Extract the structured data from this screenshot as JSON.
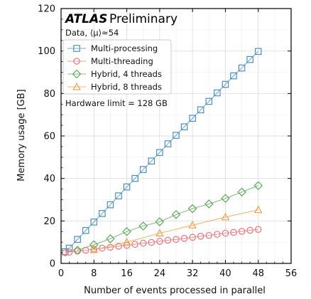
{
  "chart_data": {
    "type": "line",
    "experiment": "ATLAS",
    "status": "Preliminary",
    "subtitle": "Data, ⟨μ⟩≈54",
    "annotation": "Hardware limit = 128 GB",
    "xlabel": "Number of events processed in parallel",
    "ylabel": "Memory usage [GB]",
    "xlim": [
      0,
      56
    ],
    "ylim": [
      0,
      120
    ],
    "xticks": [
      0,
      8,
      16,
      24,
      32,
      40,
      48,
      56
    ],
    "yticks": [
      0,
      20,
      40,
      60,
      80,
      100,
      120
    ],
    "grid": true,
    "legend_position": "top-left",
    "series": [
      {
        "name": "Multi-processing",
        "color": "#4c8fbf",
        "marker": "square",
        "x": [
          1,
          2,
          4,
          6,
          8,
          10,
          12,
          14,
          16,
          18,
          20,
          22,
          24,
          26,
          28,
          30,
          32,
          34,
          36,
          38,
          40,
          42,
          44,
          46,
          48
        ],
        "y": [
          5.5,
          7.2,
          11.3,
          15.5,
          19.5,
          23.5,
          27.6,
          31.8,
          36.0,
          40.0,
          44.2,
          48.2,
          52.2,
          56.3,
          60.3,
          64.3,
          68.3,
          72.3,
          76.3,
          80.3,
          84.3,
          88.3,
          92.0,
          96.0,
          99.8
        ]
      },
      {
        "name": "Multi-threading",
        "color": "#e8777c",
        "marker": "circle",
        "x": [
          1,
          2,
          4,
          6,
          8,
          10,
          12,
          14,
          16,
          18,
          20,
          22,
          24,
          26,
          28,
          30,
          32,
          34,
          36,
          38,
          40,
          42,
          44,
          46,
          48
        ],
        "y": [
          5.0,
          5.3,
          5.8,
          6.2,
          6.7,
          7.2,
          7.6,
          8.1,
          8.5,
          9.0,
          9.5,
          9.9,
          10.4,
          10.9,
          11.3,
          11.8,
          12.3,
          12.8,
          13.2,
          13.7,
          14.2,
          14.6,
          15.1,
          15.6,
          16.0
        ]
      },
      {
        "name": "Hybrid, 4 threads",
        "color": "#5ba85b",
        "marker": "diamond",
        "x": [
          4,
          8,
          12,
          16,
          20,
          24,
          28,
          32,
          36,
          40,
          44,
          48
        ],
        "y": [
          6.2,
          8.8,
          11.6,
          15.0,
          17.6,
          19.6,
          23.0,
          25.8,
          28.0,
          30.6,
          33.6,
          36.6
        ]
      },
      {
        "name": "Hybrid, 8 threads",
        "color": "#f0a04b",
        "marker": "triangle",
        "x": [
          8,
          16,
          24,
          32,
          40,
          48
        ],
        "y": [
          6.4,
          10.0,
          14.2,
          18.0,
          21.8,
          25.2
        ]
      }
    ]
  }
}
